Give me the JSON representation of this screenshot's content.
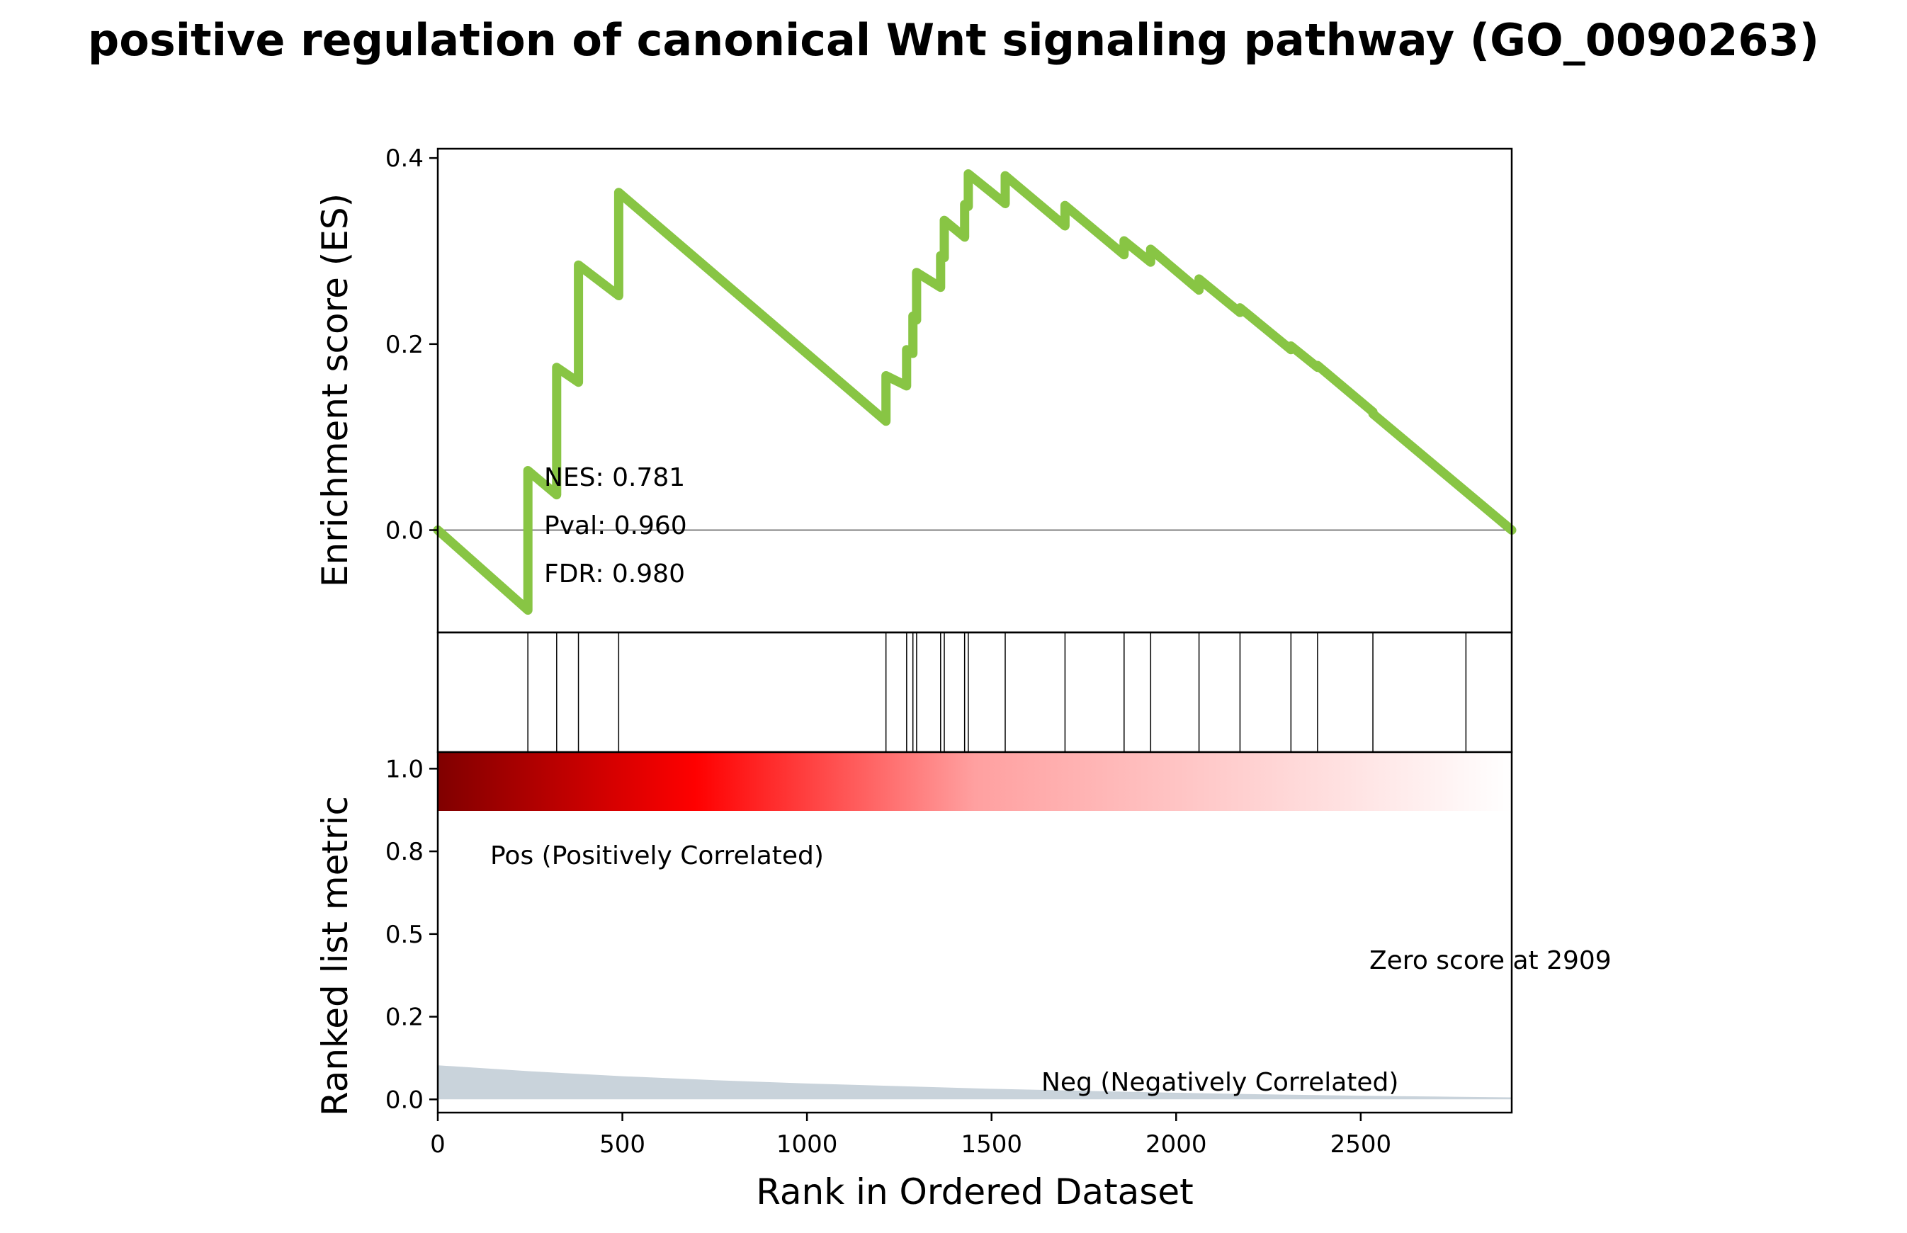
{
  "title": "positive regulation of canonical Wnt signaling pathway (GO_0090263)",
  "colors": {
    "es_line": "#88C544",
    "zero_line": "#808080",
    "hit_line": "#000000",
    "metric_fill": "#C9D3DB",
    "pos_label": "#FF0000",
    "neg_label": "#0000FF"
  },
  "chart_data": [
    {
      "type": "line",
      "name": "enrichment",
      "ylabel": "Enrichment score (ES)",
      "xlim": [
        0,
        2909
      ],
      "ylim": [
        -0.11,
        0.41
      ],
      "yticks": [
        0.0,
        0.2,
        0.4
      ],
      "ytick_labels": [
        "0.0",
        "0.2",
        "0.4"
      ],
      "grid": false,
      "stats": {
        "nes": "NES: 0.781",
        "pval": "Pval: 0.960",
        "fdr": "FDR: 0.980"
      },
      "x": [
        0,
        244,
        244,
        322,
        322,
        381,
        381,
        490,
        490,
        1214,
        1214,
        1270,
        1270,
        1287,
        1287,
        1297,
        1297,
        1362,
        1362,
        1372,
        1372,
        1427,
        1427,
        1437,
        1437,
        1537,
        1537,
        1699,
        1699,
        1859,
        1859,
        1931,
        1931,
        2062,
        2062,
        2173,
        2173,
        2311,
        2311,
        2383,
        2383,
        2533,
        2533,
        2909
      ],
      "y": [
        0,
        -0.086,
        0.064,
        0.038,
        0.175,
        0.159,
        0.285,
        0.252,
        0.363,
        0.117,
        0.166,
        0.155,
        0.194,
        0.19,
        0.23,
        0.226,
        0.277,
        0.261,
        0.295,
        0.293,
        0.333,
        0.315,
        0.35,
        0.348,
        0.383,
        0.351,
        0.381,
        0.327,
        0.349,
        0.296,
        0.311,
        0.288,
        0.302,
        0.258,
        0.27,
        0.234,
        0.239,
        0.194,
        0.198,
        0.175,
        0.177,
        0.127,
        0.125,
        0.0
      ]
    },
    {
      "type": "hits",
      "name": "gene-set-hits",
      "xlim": [
        0,
        2909
      ],
      "x": [
        244,
        322,
        381,
        490,
        1214,
        1270,
        1287,
        1297,
        1362,
        1372,
        1427,
        1437,
        1537,
        1699,
        1859,
        1931,
        2062,
        2173,
        2311,
        2383,
        2533,
        2785
      ]
    },
    {
      "type": "area",
      "name": "ranked-metric",
      "ylabel": "Ranked list metric",
      "xlabel": "Rank in Ordered Dataset",
      "xlim": [
        0,
        2909
      ],
      "ylim": [
        -0.04,
        1.05
      ],
      "xticks": [
        0,
        500,
        1000,
        1500,
        2000,
        2500
      ],
      "xtick_labels": [
        "0",
        "500",
        "1000",
        "1500",
        "2000",
        "2500"
      ],
      "yticks": [
        0.0,
        0.25,
        0.5,
        0.75,
        1.0
      ],
      "ytick_labels": [
        "0.0",
        "0.2",
        "0.5",
        "0.8",
        "1.0"
      ],
      "x": [
        0,
        250,
        500,
        750,
        1000,
        1250,
        1500,
        1750,
        2000,
        2250,
        2500,
        2750,
        2909
      ],
      "values": [
        0.103,
        0.085,
        0.07,
        0.058,
        0.048,
        0.04,
        0.032,
        0.026,
        0.02,
        0.015,
        0.011,
        0.008,
        0.006
      ],
      "pos_label": "Pos (Positively Correlated)",
      "neg_label": "Neg (Negatively Correlated)",
      "zero_score_label": "Zero score at 2909",
      "heatmap_colors": [
        "#800000",
        "#FF0000",
        "#FFFFFF"
      ]
    }
  ]
}
